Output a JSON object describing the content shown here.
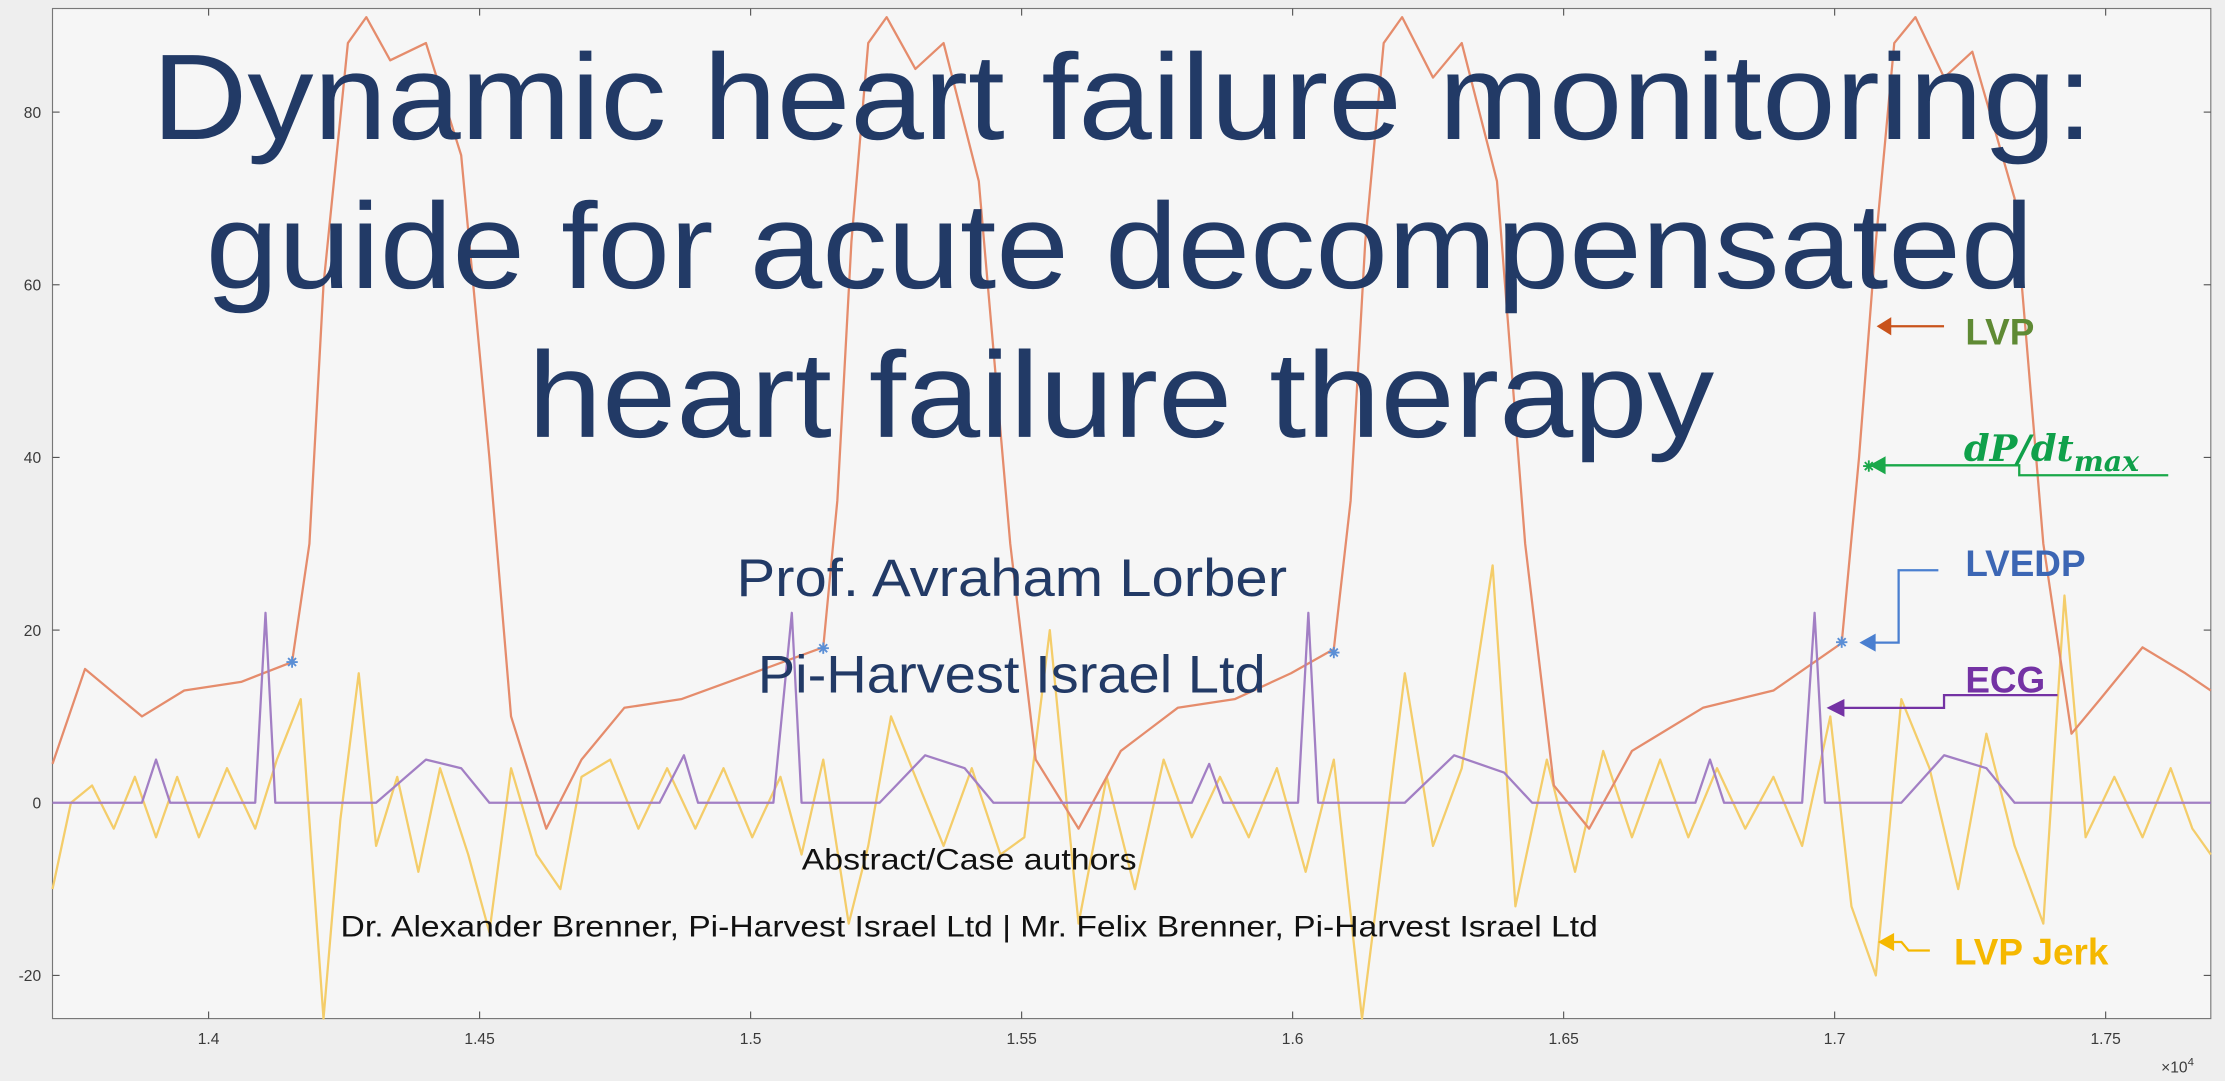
{
  "slide": {
    "title_lines": [
      "Dynamic heart failure monitoring:",
      "guide for acute decompensated",
      "heart failure therapy"
    ],
    "presenter": "Prof. Avraham Lorber",
    "affiliation": "Pi-Harvest Israel Ltd",
    "authors_heading": "Abstract/Case authors",
    "authors": "Dr. Alexander Brenner, Pi-Harvest Israel Ltd | Mr. Felix Brenner, Pi-Harvest Israel Ltd"
  },
  "chart_data": {
    "type": "line",
    "xlim": [
      1.3712,
      1.7694
    ],
    "ylim": [
      -25,
      92
    ],
    "xticks": [
      1.4,
      1.45,
      1.5,
      1.55,
      1.6,
      1.65,
      1.7,
      1.75
    ],
    "yticks": [
      -20,
      0,
      20,
      40,
      60,
      80
    ],
    "x_exponent": {
      "base": "×10",
      "power": "4"
    },
    "series": [
      {
        "color": "#e58c6c",
        "x": [
          1.3712,
          1.3772,
          1.3877,
          1.3955,
          1.406,
          1.4154,
          1.4186,
          1.4212,
          1.4257,
          1.4291,
          1.4335,
          1.4401,
          1.4466,
          1.4518,
          1.4558,
          1.4623,
          1.4688,
          1.4767,
          1.4872,
          1.5003,
          1.5134,
          1.516,
          1.5186,
          1.5217,
          1.5251,
          1.5304,
          1.5356,
          1.5421,
          1.5479,
          1.5526,
          1.5605,
          1.5683,
          1.5788,
          1.5893,
          1.5997,
          1.6076,
          1.6107,
          1.6134,
          1.6168,
          1.6202,
          1.6259,
          1.6312,
          1.6377,
          1.6429,
          1.6482,
          1.6547,
          1.6626,
          1.6757,
          1.6887,
          1.7013,
          1.7045,
          1.7076,
          1.711,
          1.7149,
          1.7202,
          1.7254,
          1.7332,
          1.7385,
          1.7437,
          1.749,
          1.7568,
          1.7647,
          1.7694
        ],
        "values": [
          4.5,
          15.5,
          10,
          13,
          14,
          16.3,
          30,
          60,
          88,
          91,
          86,
          88,
          75,
          40,
          10,
          -3,
          5,
          11,
          12,
          15,
          18,
          35,
          65,
          88,
          91,
          85,
          88,
          72,
          30,
          5,
          -3,
          6,
          11,
          12,
          15,
          17.8,
          35,
          65,
          88,
          91,
          84,
          88,
          72,
          30,
          2,
          -3,
          6,
          11,
          13,
          18.5,
          40,
          65,
          88,
          91,
          84,
          87,
          70,
          30,
          8,
          12,
          18,
          15,
          13
        ]
      },
      {
        "color": "#a27fc4",
        "x": [
          1.3712,
          1.3877,
          1.3903,
          1.3929,
          1.4086,
          1.4105,
          1.4123,
          1.4309,
          1.4401,
          1.4466,
          1.4518,
          1.4832,
          1.4877,
          1.4903,
          1.5042,
          1.5076,
          1.5094,
          1.5238,
          1.5322,
          1.5395,
          1.5448,
          1.5814,
          1.5846,
          1.5872,
          1.601,
          1.6029,
          1.6047,
          1.6207,
          1.6298,
          1.639,
          1.6442,
          1.6743,
          1.677,
          1.6796,
          1.694,
          1.6963,
          1.6982,
          1.7123,
          1.7202,
          1.728,
          1.7332,
          1.7694
        ],
        "values": [
          0,
          0,
          5,
          0,
          0,
          22,
          0,
          0,
          5,
          4,
          0,
          0,
          5.5,
          0,
          0,
          22,
          0,
          0,
          5.5,
          4,
          0,
          0,
          4.5,
          0,
          0,
          22,
          0,
          0,
          5.5,
          3.5,
          0,
          0,
          5,
          0,
          0,
          22,
          0,
          0,
          5.5,
          4,
          0,
          0
        ]
      },
      {
        "color": "#f4cd6a",
        "x": [
          1.3712,
          1.3746,
          1.3785,
          1.3825,
          1.3864,
          1.3903,
          1.3942,
          1.3982,
          1.4034,
          1.4086,
          1.4126,
          1.417,
          1.4212,
          1.4243,
          1.4277,
          1.4309,
          1.4348,
          1.4387,
          1.4427,
          1.4479,
          1.4518,
          1.4558,
          1.4605,
          1.4649,
          1.4688,
          1.4741,
          1.4793,
          1.4846,
          1.4898,
          1.495,
          1.5003,
          1.5055,
          1.5094,
          1.5134,
          1.5181,
          1.5217,
          1.5259,
          1.5304,
          1.5356,
          1.5408,
          1.5461,
          1.5505,
          1.5552,
          1.5605,
          1.5657,
          1.5709,
          1.5762,
          1.5814,
          1.5866,
          1.5919,
          1.5971,
          1.6024,
          1.6076,
          1.6128,
          1.6168,
          1.6207,
          1.6259,
          1.6312,
          1.6369,
          1.6411,
          1.6469,
          1.6521,
          1.6573,
          1.6626,
          1.6678,
          1.673,
          1.6783,
          1.6835,
          1.6887,
          1.694,
          1.6992,
          1.7031,
          1.7076,
          1.7123,
          1.7175,
          1.7228,
          1.728,
          1.7332,
          1.7385,
          1.7424,
          1.7463,
          1.7516,
          1.7568,
          1.762,
          1.766,
          1.7694
        ],
        "values": [
          -10,
          0,
          2,
          -3,
          3,
          -4,
          3,
          -4,
          4,
          -3,
          5,
          12,
          -25,
          -2,
          15,
          -5,
          3,
          -8,
          4,
          -6,
          -15,
          4,
          -6,
          -10,
          3,
          5,
          -3,
          4,
          -3,
          4,
          -4,
          3,
          -6,
          5,
          -14,
          -5,
          10,
          3,
          -5,
          4,
          -6,
          -4,
          20,
          -14,
          3,
          -10,
          5,
          -4,
          3,
          -4,
          4,
          -8,
          5,
          -25,
          -5,
          15,
          -5,
          4,
          27.5,
          -12,
          5,
          -8,
          6,
          -4,
          5,
          -4,
          4,
          -3,
          3,
          -5,
          10,
          -12,
          -20,
          12,
          4,
          -10,
          8,
          -5,
          -14,
          24,
          -4,
          3,
          -4,
          4,
          -3,
          -6
        ]
      }
    ],
    "markers": [
      {
        "color": "#5b8fd6",
        "x": [
          1.4154,
          1.5134,
          1.6076,
          1.7013
        ],
        "values": [
          16.3,
          17.9,
          17.4,
          18.6
        ]
      },
      {
        "color": "#1aa84a",
        "x": [
          1.7063
        ],
        "values": [
          39
        ]
      }
    ],
    "annotations": [
      {
        "text": "LVP",
        "color": "#5f8a34"
      },
      {
        "text": "dP/dt",
        "subscript": "max",
        "color": "#0fa04a"
      },
      {
        "text": "LVEDP",
        "color": "#3c66b4"
      },
      {
        "text": "ECG",
        "color": "#7432a4"
      },
      {
        "text": "LVP Jerk",
        "color": "#f5b800"
      }
    ]
  }
}
